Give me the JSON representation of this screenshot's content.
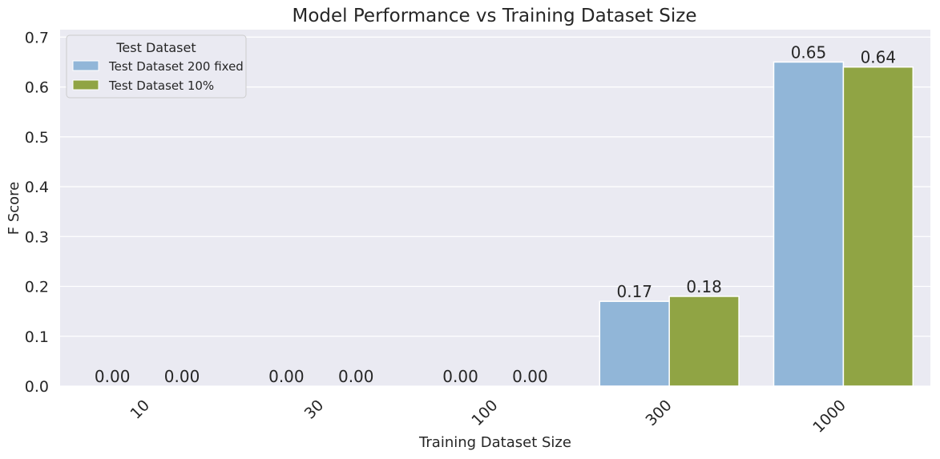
{
  "chart_data": {
    "type": "bar",
    "title": "Model Performance vs Training Dataset Size",
    "xlabel": "Training Dataset Size",
    "ylabel": "F Score",
    "categories": [
      "10",
      "30",
      "100",
      "300",
      "1000"
    ],
    "series": [
      {
        "name": "Test Dataset 200 fixed",
        "values": [
          0.0,
          0.0,
          0.0,
          0.17,
          0.65
        ],
        "labels": [
          "0.00",
          "0.00",
          "0.00",
          "0.17",
          "0.65"
        ],
        "color": "#91b6d8"
      },
      {
        "name": "Test Dataset 10%",
        "values": [
          0.0,
          0.0,
          0.0,
          0.18,
          0.64
        ],
        "labels": [
          "0.00",
          "0.00",
          "0.00",
          "0.18",
          "0.64"
        ],
        "color": "#90a444"
      }
    ],
    "ylim": [
      0,
      0.715
    ],
    "yticks": [
      "0.0",
      "0.1",
      "0.2",
      "0.3",
      "0.4",
      "0.5",
      "0.6",
      "0.7"
    ],
    "legend_title": "Test Dataset",
    "legend_position": "top-left",
    "grid": true,
    "background": "#eaeaf2"
  }
}
